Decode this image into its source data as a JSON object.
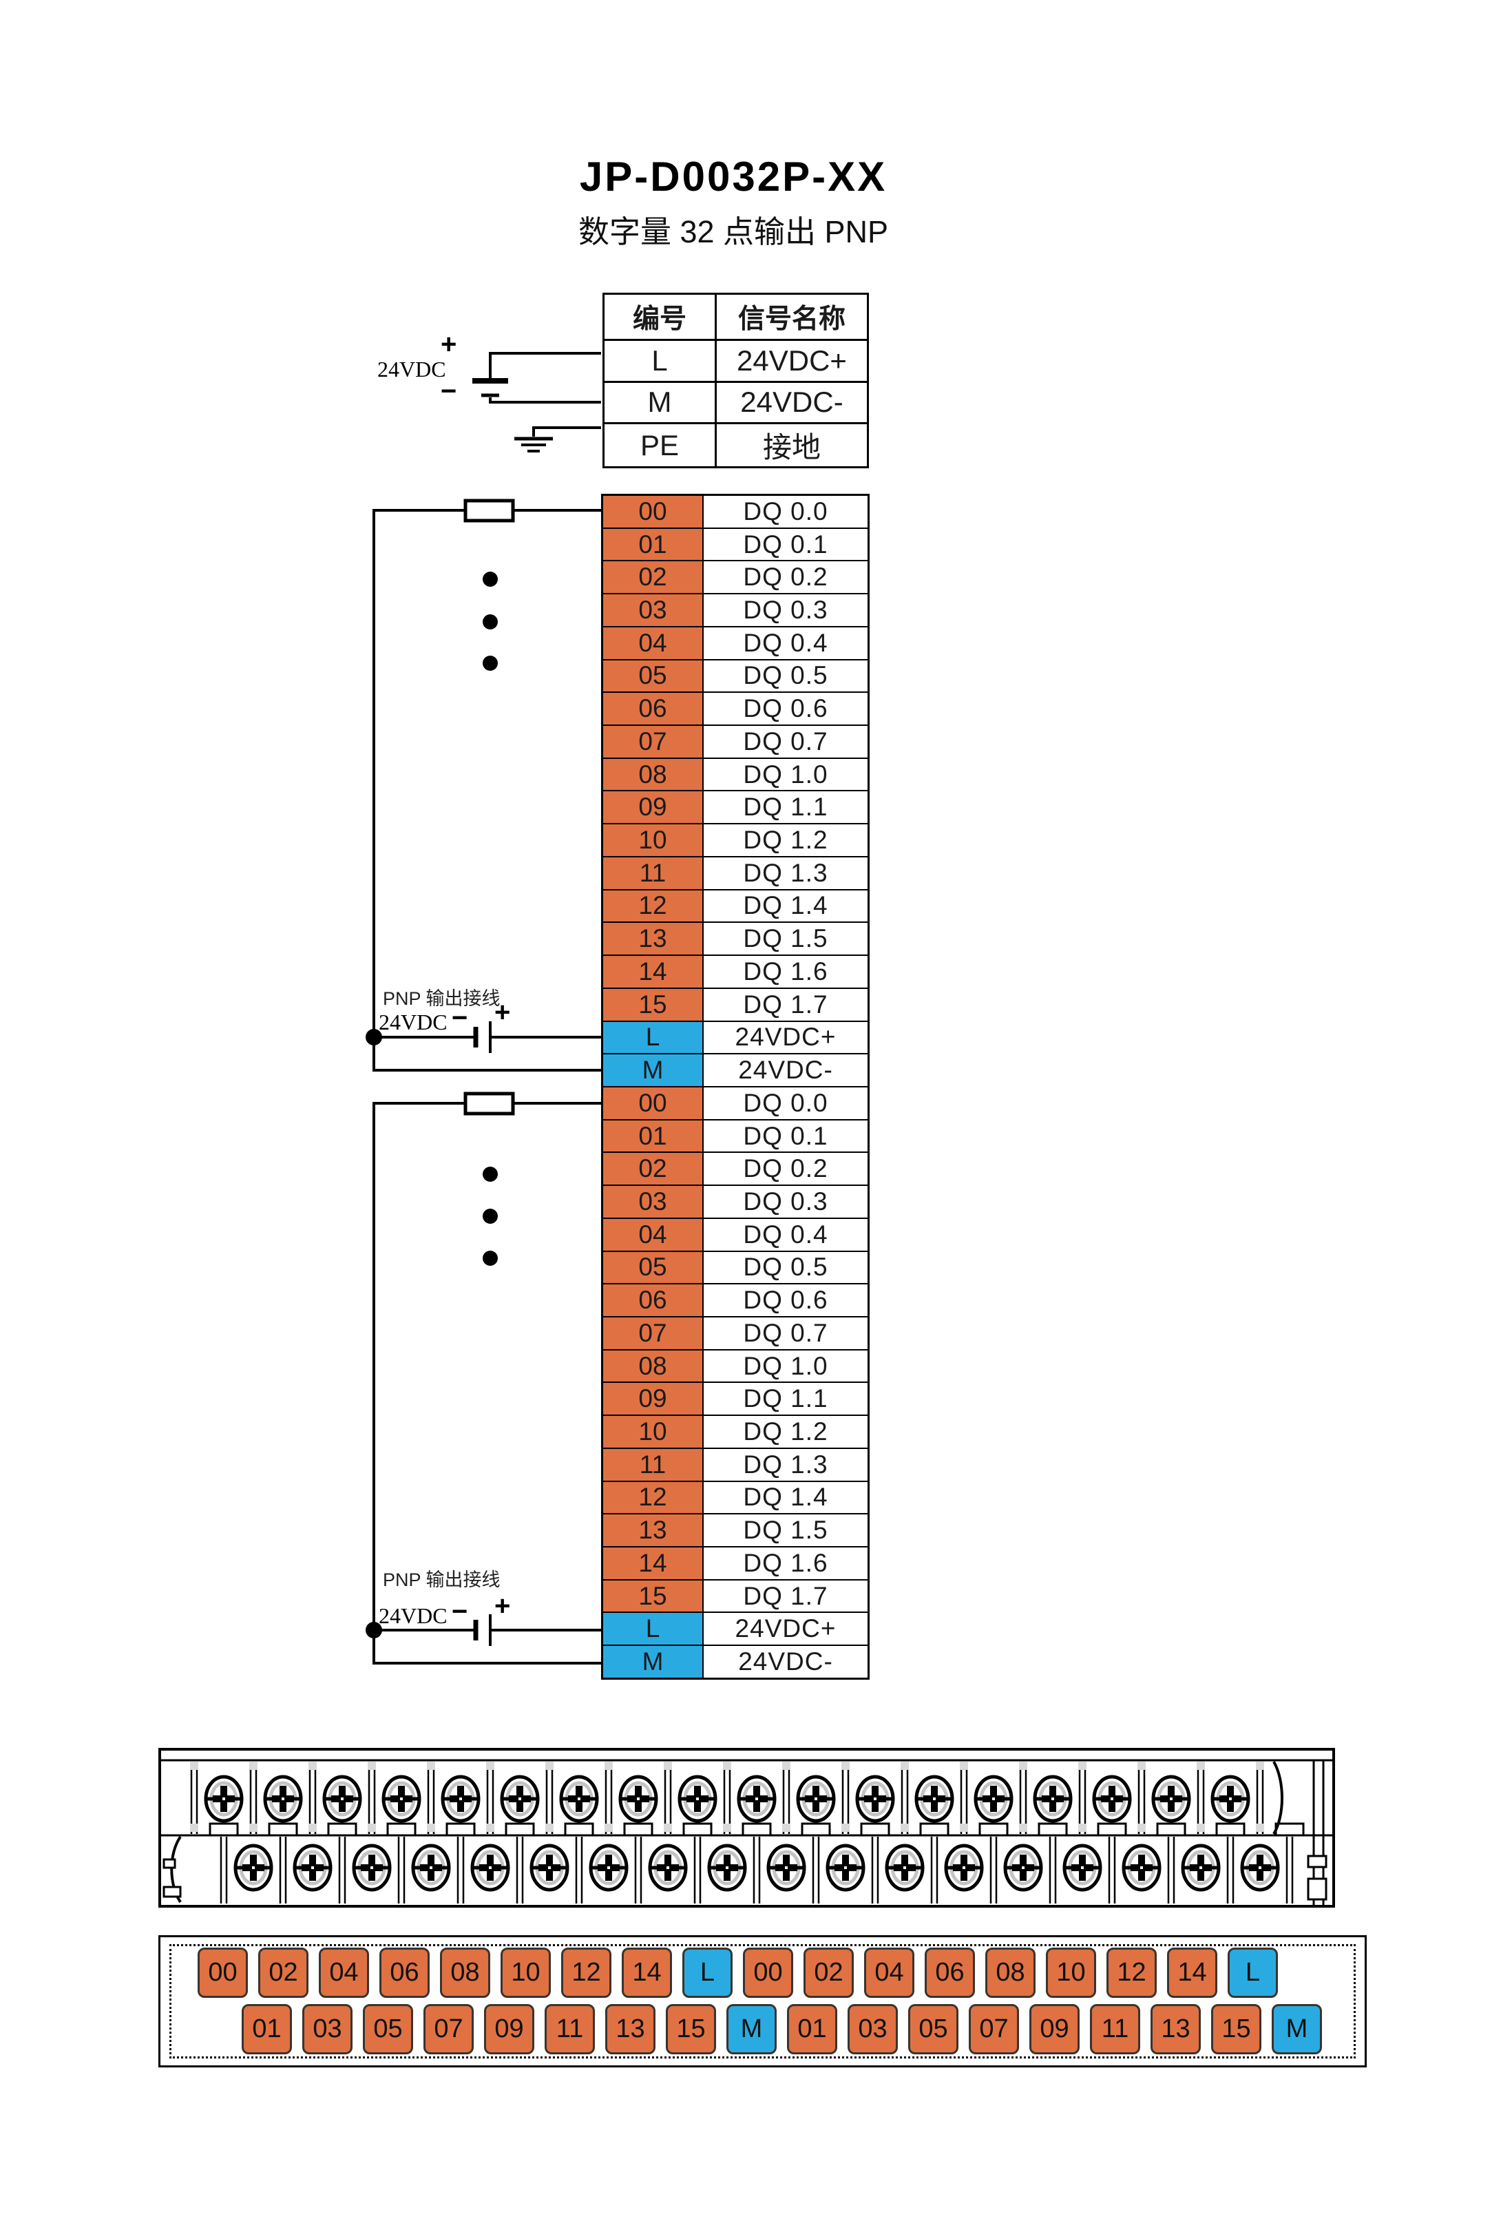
{
  "title": "JP-D0032P-XX",
  "subtitle": "数字量 32 点输出  PNP",
  "colors": {
    "orange": "#E07143",
    "blue": "#29ABE2",
    "line": "#000000"
  },
  "power_table": {
    "headers": [
      "编号",
      "信号名称"
    ],
    "rows": [
      {
        "id": "L",
        "name": "24VDC+"
      },
      {
        "id": "M",
        "name": "24VDC-"
      },
      {
        "id": "PE",
        "name": "接地"
      }
    ]
  },
  "top_psu": {
    "label": "24VDC",
    "plus": "+",
    "minus": "−"
  },
  "blocks": [
    {
      "pnp_label": "PNP 输出接线",
      "psu": {
        "label": "24VDC",
        "minus": "−",
        "plus": "+"
      },
      "rows": [
        {
          "id": "00",
          "name": "DQ 0.0",
          "type": "dq"
        },
        {
          "id": "01",
          "name": "DQ 0.1",
          "type": "dq"
        },
        {
          "id": "02",
          "name": "DQ 0.2",
          "type": "dq"
        },
        {
          "id": "03",
          "name": "DQ 0.3",
          "type": "dq"
        },
        {
          "id": "04",
          "name": "DQ 0.4",
          "type": "dq"
        },
        {
          "id": "05",
          "name": "DQ 0.5",
          "type": "dq"
        },
        {
          "id": "06",
          "name": "DQ 0.6",
          "type": "dq"
        },
        {
          "id": "07",
          "name": "DQ 0.7",
          "type": "dq"
        },
        {
          "id": "08",
          "name": "DQ 1.0",
          "type": "dq"
        },
        {
          "id": "09",
          "name": "DQ 1.1",
          "type": "dq"
        },
        {
          "id": "10",
          "name": "DQ 1.2",
          "type": "dq"
        },
        {
          "id": "11",
          "name": "DQ 1.3",
          "type": "dq"
        },
        {
          "id": "12",
          "name": "DQ 1.4",
          "type": "dq"
        },
        {
          "id": "13",
          "name": "DQ 1.5",
          "type": "dq"
        },
        {
          "id": "14",
          "name": "DQ 1.6",
          "type": "dq"
        },
        {
          "id": "15",
          "name": "DQ 1.7",
          "type": "dq"
        },
        {
          "id": "L",
          "name": "24VDC+",
          "type": "pwr"
        },
        {
          "id": "M",
          "name": "24VDC-",
          "type": "pwr"
        }
      ]
    },
    {
      "pnp_label": "PNP 输出接线",
      "psu": {
        "label": "24VDC",
        "minus": "−",
        "plus": "+"
      },
      "rows": [
        {
          "id": "00",
          "name": "DQ 0.0",
          "type": "dq"
        },
        {
          "id": "01",
          "name": "DQ 0.1",
          "type": "dq"
        },
        {
          "id": "02",
          "name": "DQ 0.2",
          "type": "dq"
        },
        {
          "id": "03",
          "name": "DQ 0.3",
          "type": "dq"
        },
        {
          "id": "04",
          "name": "DQ 0.4",
          "type": "dq"
        },
        {
          "id": "05",
          "name": "DQ 0.5",
          "type": "dq"
        },
        {
          "id": "06",
          "name": "DQ 0.6",
          "type": "dq"
        },
        {
          "id": "07",
          "name": "DQ 0.7",
          "type": "dq"
        },
        {
          "id": "08",
          "name": "DQ 1.0",
          "type": "dq"
        },
        {
          "id": "09",
          "name": "DQ 1.1",
          "type": "dq"
        },
        {
          "id": "10",
          "name": "DQ 1.2",
          "type": "dq"
        },
        {
          "id": "11",
          "name": "DQ 1.3",
          "type": "dq"
        },
        {
          "id": "12",
          "name": "DQ 1.4",
          "type": "dq"
        },
        {
          "id": "13",
          "name": "DQ 1.5",
          "type": "dq"
        },
        {
          "id": "14",
          "name": "DQ 1.6",
          "type": "dq"
        },
        {
          "id": "15",
          "name": "DQ 1.7",
          "type": "dq"
        },
        {
          "id": "L",
          "name": "24VDC+",
          "type": "pwr"
        },
        {
          "id": "M",
          "name": "24VDC-",
          "type": "pwr"
        }
      ]
    }
  ],
  "terminal_block": {
    "top_screw_count": 18,
    "bottom_screw_count": 18
  },
  "label_strip": {
    "groups": 2,
    "top_row": [
      "00",
      "02",
      "04",
      "06",
      "08",
      "10",
      "12",
      "14",
      "L"
    ],
    "bottom_row": [
      "01",
      "03",
      "05",
      "07",
      "09",
      "11",
      "13",
      "15",
      "M"
    ],
    "power_ids": [
      "L",
      "M"
    ]
  }
}
